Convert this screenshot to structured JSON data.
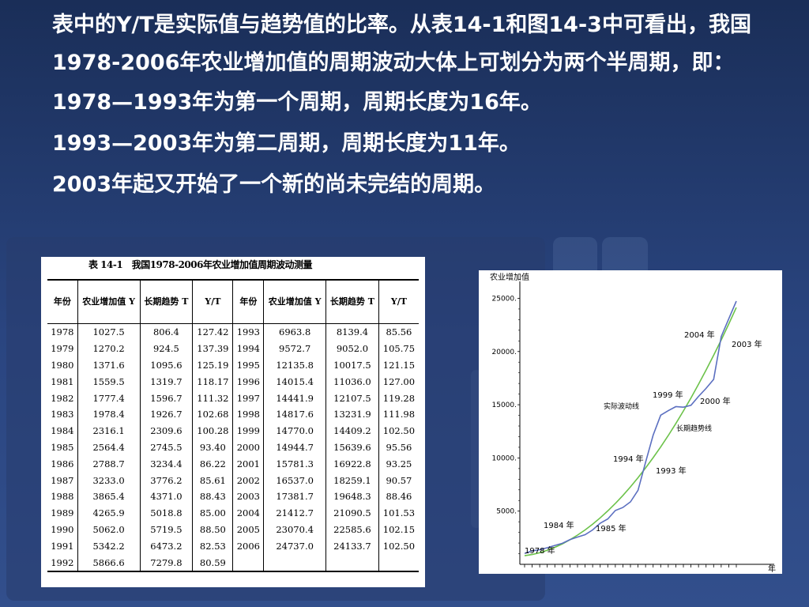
{
  "paragraphs": {
    "intro": "表中的Y/T是实际值与趋势值的比率。从表14-1和图14-3中可看出，我国1978-2006年农业增加值的周期波动大体上可划分为两个半周期，即：",
    "cycle1": "1978—1993年为第一个周期，周期长度为16年。",
    "cycle2": "1993—2003年为第二周期，周期长度为11年。",
    "cycle3": "2003年起又开始了一个新的尚未完结的周期。"
  },
  "table": {
    "title": "表 14-1　我国1978-2006年农业增加值周期波动测量",
    "headers": [
      "年份",
      "农业增加值 Y",
      "长期趋势 T",
      "Y/T",
      "年份",
      "农业增加值 Y",
      "长期趋势 T",
      "Y/T"
    ],
    "rows": [
      [
        "1978",
        "1027.5",
        "806.4",
        "127.42",
        "1993",
        "6963.8",
        "8139.4",
        "85.56"
      ],
      [
        "1979",
        "1270.2",
        "924.5",
        "137.39",
        "1994",
        "9572.7",
        "9052.0",
        "105.75"
      ],
      [
        "1980",
        "1371.6",
        "1095.6",
        "125.19",
        "1995",
        "12135.8",
        "10017.5",
        "121.15"
      ],
      [
        "1981",
        "1559.5",
        "1319.7",
        "118.17",
        "1996",
        "14015.4",
        "11036.0",
        "127.00"
      ],
      [
        "1982",
        "1777.4",
        "1596.7",
        "111.32",
        "1997",
        "14441.9",
        "12107.5",
        "119.28"
      ],
      [
        "1983",
        "1978.4",
        "1926.7",
        "102.68",
        "1998",
        "14817.6",
        "13231.9",
        "111.98"
      ],
      [
        "1984",
        "2316.1",
        "2309.6",
        "100.28",
        "1999",
        "14770.0",
        "14409.2",
        "102.50"
      ],
      [
        "1985",
        "2564.4",
        "2745.5",
        "93.40",
        "2000",
        "14944.7",
        "15639.6",
        "95.56"
      ],
      [
        "1986",
        "2788.7",
        "3234.4",
        "86.22",
        "2001",
        "15781.3",
        "16922.8",
        "93.25"
      ],
      [
        "1987",
        "3233.0",
        "3776.2",
        "85.61",
        "2002",
        "16537.0",
        "18259.1",
        "90.57"
      ],
      [
        "1988",
        "3865.4",
        "4371.0",
        "88.43",
        "2003",
        "17381.7",
        "19648.3",
        "88.46"
      ],
      [
        "1989",
        "4265.9",
        "5018.8",
        "85.00",
        "2004",
        "21412.7",
        "21090.5",
        "101.53"
      ],
      [
        "1990",
        "5062.0",
        "5719.5",
        "88.50",
        "2005",
        "23070.4",
        "22585.6",
        "102.15"
      ],
      [
        "1991",
        "5342.2",
        "6473.2",
        "82.53",
        "2006",
        "24737.0",
        "24133.7",
        "102.50"
      ],
      [
        "1992",
        "5866.6",
        "7279.8",
        "80.59",
        "",
        "",
        "",
        ""
      ]
    ]
  },
  "chart_data": {
    "type": "line",
    "ylabel": "农业增加值",
    "xlabel": "年",
    "ylim": [
      0,
      26000
    ],
    "yticks": [
      5000,
      10000,
      15000,
      20000,
      25000
    ],
    "ytick_labels": [
      "5000.",
      "10000.",
      "15000.",
      "20000.",
      "25000."
    ],
    "x": [
      1978,
      1979,
      1980,
      1981,
      1982,
      1983,
      1984,
      1985,
      1986,
      1987,
      1988,
      1989,
      1990,
      1991,
      1992,
      1993,
      1994,
      1995,
      1996,
      1997,
      1998,
      1999,
      2000,
      2001,
      2002,
      2003,
      2004,
      2005,
      2006
    ],
    "series": [
      {
        "name": "实际波动线",
        "color": "#5b6fc0",
        "values": [
          1027.5,
          1270.2,
          1371.6,
          1559.5,
          1777.4,
          1978.4,
          2316.1,
          2564.4,
          2788.7,
          3233.0,
          3865.4,
          4265.9,
          5062.0,
          5342.2,
          5866.6,
          6963.8,
          9572.7,
          12135.8,
          14015.4,
          14441.9,
          14817.6,
          14770.0,
          14944.7,
          15781.3,
          16537.0,
          17381.7,
          21412.7,
          23070.4,
          24737.0
        ]
      },
      {
        "name": "长期趋势线",
        "color": "#6cc24a",
        "values": [
          806.4,
          924.5,
          1095.6,
          1319.7,
          1596.7,
          1926.7,
          2309.6,
          2745.5,
          3234.4,
          3776.2,
          4371.0,
          5018.8,
          5719.5,
          6473.2,
          7279.8,
          8139.4,
          9052.0,
          10017.5,
          11036.0,
          12107.5,
          13231.9,
          14409.2,
          15639.6,
          16922.8,
          18259.1,
          19648.3,
          21090.5,
          22585.6,
          24133.7
        ]
      }
    ],
    "annotations": [
      {
        "text": "1978 年",
        "year": 1978
      },
      {
        "text": "1984 年",
        "year": 1984
      },
      {
        "text": "1985 年",
        "year": 1985
      },
      {
        "text": "1993 年",
        "year": 1993
      },
      {
        "text": "1994 年",
        "year": 1994
      },
      {
        "text": "1999 年",
        "year": 1999
      },
      {
        "text": "2000 年",
        "year": 2000
      },
      {
        "text": "2003 年",
        "year": 2003
      },
      {
        "text": "2004 年",
        "year": 2004
      }
    ]
  }
}
